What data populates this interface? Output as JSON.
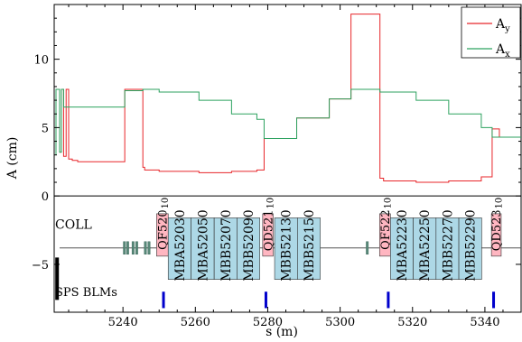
{
  "chart_data": {
    "type": "line",
    "xlabel": "s (m)",
    "ylabel": "A (cm)",
    "xlim": [
      5221,
      5350
    ],
    "ylim": [
      -8.5,
      14
    ],
    "x_ticks": [
      5240,
      5260,
      5280,
      5300,
      5320,
      5340
    ],
    "y_ticks": [
      0,
      5,
      10,
      -5
    ],
    "legend": {
      "placement": "top-right",
      "entries": [
        {
          "base": "A",
          "sub": "y",
          "color": "#e8262a"
        },
        {
          "base": "A",
          "sub": "x",
          "color": "#2ca25f"
        }
      ]
    },
    "series": [
      {
        "name": "A_y",
        "color": "#e8262a",
        "points": [
          [
            5221.5,
            3.0
          ],
          [
            5221.5,
            7.8
          ],
          [
            5222.5,
            7.8
          ],
          [
            5222.5,
            3.2
          ],
          [
            5223,
            3.2
          ],
          [
            5223,
            7.8
          ],
          [
            5223.6,
            7.8
          ],
          [
            5223.6,
            2.9
          ],
          [
            5224.3,
            2.9
          ],
          [
            5224.3,
            7.8
          ],
          [
            5225,
            7.8
          ],
          [
            5225,
            2.7
          ],
          [
            5226,
            2.7
          ],
          [
            5226,
            2.6
          ],
          [
            5227.5,
            2.6
          ],
          [
            5227.5,
            2.5
          ],
          [
            5240.5,
            2.5
          ],
          [
            5240.5,
            7.8
          ],
          [
            5245.5,
            7.8
          ],
          [
            5245.5,
            2.1
          ],
          [
            5246,
            2.1
          ],
          [
            5246,
            1.9
          ],
          [
            5250,
            1.9
          ],
          [
            5250,
            1.8
          ],
          [
            5261,
            1.8
          ],
          [
            5261,
            1.7
          ],
          [
            5270,
            1.7
          ],
          [
            5270,
            1.8
          ],
          [
            5277,
            1.8
          ],
          [
            5277,
            1.9
          ],
          [
            5279,
            1.9
          ],
          [
            5279,
            4.2
          ],
          [
            5288,
            4.2
          ],
          [
            5288,
            5.7
          ],
          [
            5297,
            5.7
          ],
          [
            5297,
            7.1
          ],
          [
            5303,
            7.1
          ],
          [
            5303,
            13.3
          ],
          [
            5311,
            13.3
          ],
          [
            5311,
            1.3
          ],
          [
            5312,
            1.3
          ],
          [
            5312,
            1.1
          ],
          [
            5321,
            1.1
          ],
          [
            5321,
            1.0
          ],
          [
            5330,
            1.0
          ],
          [
            5330,
            1.1
          ],
          [
            5339,
            1.1
          ],
          [
            5339,
            1.4
          ],
          [
            5342,
            1.4
          ],
          [
            5342,
            4.9
          ],
          [
            5344,
            4.9
          ],
          [
            5344,
            4.3
          ],
          [
            5350,
            4.3
          ]
        ]
      },
      {
        "name": "A_x",
        "color": "#2ca25f",
        "points": [
          [
            5221.5,
            3.0
          ],
          [
            5221.5,
            7.8
          ],
          [
            5222.5,
            7.8
          ],
          [
            5222.5,
            3.2
          ],
          [
            5223,
            3.2
          ],
          [
            5223,
            7.8
          ],
          [
            5223.6,
            7.8
          ],
          [
            5223.6,
            6.5
          ],
          [
            5240.5,
            6.5
          ],
          [
            5240.5,
            7.7
          ],
          [
            5245.5,
            7.7
          ],
          [
            5245.5,
            7.8
          ],
          [
            5250,
            7.8
          ],
          [
            5250,
            7.6
          ],
          [
            5261,
            7.6
          ],
          [
            5261,
            7.0
          ],
          [
            5270,
            7.0
          ],
          [
            5270,
            6.0
          ],
          [
            5277,
            6.0
          ],
          [
            5277,
            5.6
          ],
          [
            5279,
            5.6
          ],
          [
            5279,
            4.2
          ],
          [
            5288,
            4.2
          ],
          [
            5288,
            5.7
          ],
          [
            5297,
            5.7
          ],
          [
            5297,
            7.1
          ],
          [
            5303,
            7.1
          ],
          [
            5303,
            7.8
          ],
          [
            5311,
            7.8
          ],
          [
            5311,
            7.6
          ],
          [
            5321,
            7.6
          ],
          [
            5321,
            7.0
          ],
          [
            5330,
            7.0
          ],
          [
            5330,
            6.0
          ],
          [
            5339,
            6.0
          ],
          [
            5339,
            5.0
          ],
          [
            5342,
            5.0
          ],
          [
            5342,
            4.3
          ],
          [
            5350,
            4.3
          ]
        ]
      }
    ],
    "beamline": {
      "axis_y": -3.8,
      "pipe_color": "#555555",
      "magnet_fill": "#add8e6",
      "quad_fill": "#ffb6c1",
      "collimator": {
        "label": "COLL",
        "x": 5221.8,
        "y_range": [
          -4.5,
          -7.6
        ]
      },
      "blm_label": "SPS BLMs",
      "blm_color": "#0000cc",
      "blms": [
        5251.2,
        5279.5,
        5313.3,
        5342.4
      ],
      "small_elements": [
        5240.4,
        5241.3,
        5242.8,
        5243.8,
        5246.2,
        5247.2,
        5283.6,
        5286.3,
        5292.0,
        5307.5,
        5313.3,
        5337.0
      ],
      "quads": [
        {
          "label": "QF520",
          "over": "10",
          "x0": 5249.3,
          "x1": 5252.5
        },
        {
          "label": "QD521",
          "over": "10",
          "x0": 5278.6,
          "x1": 5281.5
        },
        {
          "label": "QF522",
          "over": "10",
          "x0": 5310.9,
          "x1": 5313.9
        },
        {
          "label": "QD523",
          "over": "10",
          "x0": 5341.8,
          "x1": 5344.5
        }
      ],
      "dipoles": [
        {
          "label": "MBA52030",
          "x0": 5252.5,
          "x1": 5258.8
        },
        {
          "label": "MBA52050",
          "x0": 5258.8,
          "x1": 5265.2
        },
        {
          "label": "MBB52070",
          "x0": 5265.2,
          "x1": 5271.5
        },
        {
          "label": "MBB52090",
          "x0": 5271.5,
          "x1": 5277.8
        },
        {
          "label": "MBB52130",
          "x0": 5281.9,
          "x1": 5288.2
        },
        {
          "label": "MBB52150",
          "x0": 5288.2,
          "x1": 5294.5
        },
        {
          "label": "MBA52230",
          "x0": 5313.9,
          "x1": 5320.2
        },
        {
          "label": "MBA52250",
          "x0": 5320.2,
          "x1": 5326.5
        },
        {
          "label": "MBB52270",
          "x0": 5326.5,
          "x1": 5332.8
        },
        {
          "label": "MBB52290",
          "x0": 5332.8,
          "x1": 5339.1
        }
      ]
    }
  }
}
